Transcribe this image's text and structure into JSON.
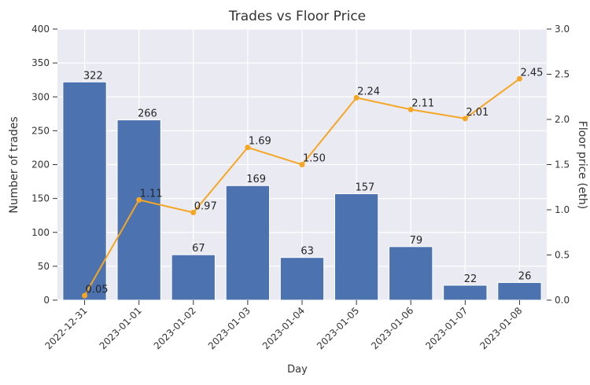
{
  "chart_data": {
    "type": "combo",
    "title": "Trades vs Floor Price",
    "xlabel": "Day",
    "ylabel": "Number of trades",
    "y2label": "Floor price (eth)",
    "categories": [
      "2022-12-31",
      "2023-01-01",
      "2023-01-02",
      "2023-01-03",
      "2023-01-04",
      "2023-01-05",
      "2023-01-06",
      "2023-01-07",
      "2023-01-08"
    ],
    "series": [
      {
        "type": "bar",
        "color": "#4c72b0",
        "values": [
          322,
          266,
          67,
          169,
          63,
          157,
          79,
          22,
          26
        ]
      },
      {
        "type": "line",
        "axis": "y2",
        "color": "#f5a623",
        "values": [
          0.05,
          1.11,
          0.97,
          1.69,
          1.5,
          2.24,
          2.11,
          2.01,
          2.45
        ],
        "value_labels": [
          "0.05",
          "1.11",
          "0.97",
          "1.69",
          "1.50",
          "2.24",
          "2.11",
          "2.01",
          "2.45"
        ]
      }
    ],
    "ylim": [
      0,
      400
    ],
    "yticks": [
      0,
      50,
      100,
      150,
      200,
      250,
      300,
      350,
      400
    ],
    "y2lim": [
      0,
      3
    ],
    "y2ticks": [
      {
        "value": 0,
        "label": "0.0"
      },
      0.5,
      {
        "value": 1,
        "label": "1.0"
      },
      1.5,
      {
        "value": 2,
        "label": "2.0"
      },
      2.5,
      {
        "value": 3,
        "label": "3.0"
      }
    ],
    "grid": true,
    "background": "#eaeaf2"
  }
}
